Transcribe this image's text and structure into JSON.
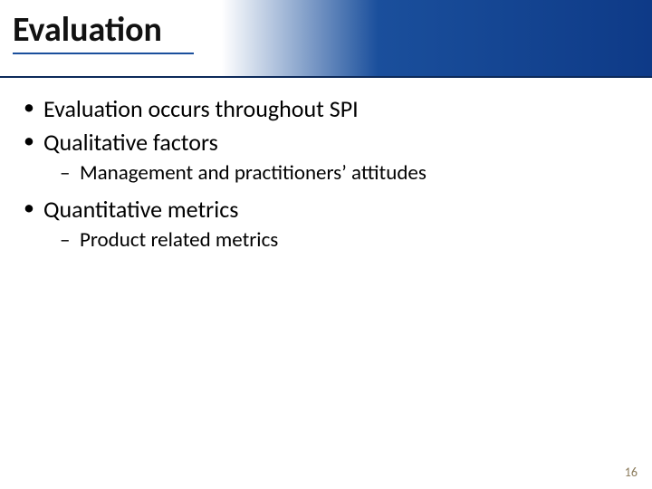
{
  "slide": {
    "title": "Evaluation",
    "page_number": "16",
    "colors": {
      "band_gradient_start": "#ffffff",
      "band_gradient_mid": "#1a4f9c",
      "band_gradient_end": "#0e3a87",
      "band_border": "#0d2a5a",
      "title_underline": "#1a4f9c",
      "text": "#000000",
      "page_num": "#8a7a5a",
      "background": "#ffffff"
    },
    "typography": {
      "title_fontsize_pt": 28,
      "title_weight": "bold",
      "l1_fontsize_pt": 20,
      "l2_fontsize_pt": 17,
      "font_family": "Calibri"
    },
    "bullets": {
      "b1": "Evaluation occurs throughout SPI",
      "b2": "Qualitative factors",
      "b2_1": "Management and practitioners’ attitudes",
      "b3": "Quantitative metrics",
      "b3_1": "Product related metrics"
    }
  }
}
